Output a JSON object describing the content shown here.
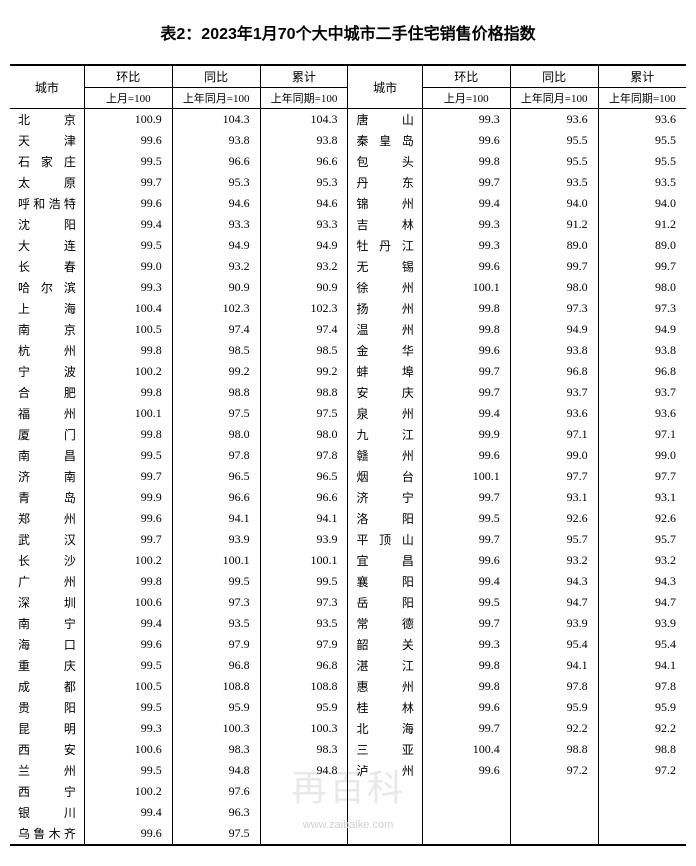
{
  "title": "表2：2023年1月70个大中城市二手住宅销售价格指数",
  "headers": {
    "city": "城市",
    "mom": "环比",
    "yoy": "同比",
    "cum": "累计",
    "mom_sub": "上月=100",
    "yoy_sub": "上年同月=100",
    "cum_sub": "上年同期=100"
  },
  "watermark_text": "再百科",
  "footer_url": "www.zaibaike.com",
  "left_rows": [
    {
      "city": "北　　京",
      "mom": "100.9",
      "yoy": "104.3",
      "cum": "104.3"
    },
    {
      "city": "天　　津",
      "mom": "99.6",
      "yoy": "93.8",
      "cum": "93.8"
    },
    {
      "city": "石 家 庄",
      "mom": "99.5",
      "yoy": "96.6",
      "cum": "96.6"
    },
    {
      "city": "太　　原",
      "mom": "99.7",
      "yoy": "95.3",
      "cum": "95.3"
    },
    {
      "city": "呼和浩特",
      "mom": "99.6",
      "yoy": "94.6",
      "cum": "94.6"
    },
    {
      "city": "沈　　阳",
      "mom": "99.4",
      "yoy": "93.3",
      "cum": "93.3"
    },
    {
      "city": "大　　连",
      "mom": "99.5",
      "yoy": "94.9",
      "cum": "94.9"
    },
    {
      "city": "长　　春",
      "mom": "99.0",
      "yoy": "93.2",
      "cum": "93.2"
    },
    {
      "city": "哈 尔 滨",
      "mom": "99.3",
      "yoy": "90.9",
      "cum": "90.9"
    },
    {
      "city": "上　　海",
      "mom": "100.4",
      "yoy": "102.3",
      "cum": "102.3"
    },
    {
      "city": "南　　京",
      "mom": "100.5",
      "yoy": "97.4",
      "cum": "97.4"
    },
    {
      "city": "杭　　州",
      "mom": "99.8",
      "yoy": "98.5",
      "cum": "98.5"
    },
    {
      "city": "宁　　波",
      "mom": "100.2",
      "yoy": "99.2",
      "cum": "99.2"
    },
    {
      "city": "合　　肥",
      "mom": "99.8",
      "yoy": "98.8",
      "cum": "98.8"
    },
    {
      "city": "福　　州",
      "mom": "100.1",
      "yoy": "97.5",
      "cum": "97.5"
    },
    {
      "city": "厦　　门",
      "mom": "99.8",
      "yoy": "98.0",
      "cum": "98.0"
    },
    {
      "city": "南　　昌",
      "mom": "99.5",
      "yoy": "97.8",
      "cum": "97.8"
    },
    {
      "city": "济　　南",
      "mom": "99.7",
      "yoy": "96.5",
      "cum": "96.5"
    },
    {
      "city": "青　　岛",
      "mom": "99.9",
      "yoy": "96.6",
      "cum": "96.6"
    },
    {
      "city": "郑　　州",
      "mom": "99.6",
      "yoy": "94.1",
      "cum": "94.1"
    },
    {
      "city": "武　　汉",
      "mom": "99.7",
      "yoy": "93.9",
      "cum": "93.9"
    },
    {
      "city": "长　　沙",
      "mom": "100.2",
      "yoy": "100.1",
      "cum": "100.1"
    },
    {
      "city": "广　　州",
      "mom": "99.8",
      "yoy": "99.5",
      "cum": "99.5"
    },
    {
      "city": "深　　圳",
      "mom": "100.6",
      "yoy": "97.3",
      "cum": "97.3"
    },
    {
      "city": "南　　宁",
      "mom": "99.4",
      "yoy": "93.5",
      "cum": "93.5"
    },
    {
      "city": "海　　口",
      "mom": "99.6",
      "yoy": "97.9",
      "cum": "97.9"
    },
    {
      "city": "重　　庆",
      "mom": "99.5",
      "yoy": "96.8",
      "cum": "96.8"
    },
    {
      "city": "成　　都",
      "mom": "100.5",
      "yoy": "108.8",
      "cum": "108.8"
    },
    {
      "city": "贵　　阳",
      "mom": "99.5",
      "yoy": "95.9",
      "cum": "95.9"
    },
    {
      "city": "昆　　明",
      "mom": "99.3",
      "yoy": "100.3",
      "cum": "100.3"
    },
    {
      "city": "西　　安",
      "mom": "100.6",
      "yoy": "98.3",
      "cum": "98.3"
    },
    {
      "city": "兰　　州",
      "mom": "99.5",
      "yoy": "94.8",
      "cum": "94.8"
    },
    {
      "city": "西　　宁",
      "mom": "100.2",
      "yoy": "97.6",
      "cum": ""
    },
    {
      "city": "银　　川",
      "mom": "99.4",
      "yoy": "96.3",
      "cum": ""
    },
    {
      "city": "乌鲁木齐",
      "mom": "99.6",
      "yoy": "97.5",
      "cum": ""
    }
  ],
  "right_rows": [
    {
      "city": "唐　　山",
      "mom": "99.3",
      "yoy": "93.6",
      "cum": "93.6"
    },
    {
      "city": "秦 皇 岛",
      "mom": "99.6",
      "yoy": "95.5",
      "cum": "95.5"
    },
    {
      "city": "包　　头",
      "mom": "99.8",
      "yoy": "95.5",
      "cum": "95.5"
    },
    {
      "city": "丹　　东",
      "mom": "99.7",
      "yoy": "93.5",
      "cum": "93.5"
    },
    {
      "city": "锦　　州",
      "mom": "99.4",
      "yoy": "94.0",
      "cum": "94.0"
    },
    {
      "city": "吉　　林",
      "mom": "99.3",
      "yoy": "91.2",
      "cum": "91.2"
    },
    {
      "city": "牡 丹 江",
      "mom": "99.3",
      "yoy": "89.0",
      "cum": "89.0"
    },
    {
      "city": "无　　锡",
      "mom": "99.6",
      "yoy": "99.7",
      "cum": "99.7"
    },
    {
      "city": "徐　　州",
      "mom": "100.1",
      "yoy": "98.0",
      "cum": "98.0"
    },
    {
      "city": "扬　　州",
      "mom": "99.8",
      "yoy": "97.3",
      "cum": "97.3"
    },
    {
      "city": "温　　州",
      "mom": "99.8",
      "yoy": "94.9",
      "cum": "94.9"
    },
    {
      "city": "金　　华",
      "mom": "99.6",
      "yoy": "93.8",
      "cum": "93.8"
    },
    {
      "city": "蚌　　埠",
      "mom": "99.7",
      "yoy": "96.8",
      "cum": "96.8"
    },
    {
      "city": "安　　庆",
      "mom": "99.7",
      "yoy": "93.7",
      "cum": "93.7"
    },
    {
      "city": "泉　　州",
      "mom": "99.4",
      "yoy": "93.6",
      "cum": "93.6"
    },
    {
      "city": "九　　江",
      "mom": "99.9",
      "yoy": "97.1",
      "cum": "97.1"
    },
    {
      "city": "赣　　州",
      "mom": "99.6",
      "yoy": "99.0",
      "cum": "99.0"
    },
    {
      "city": "烟　　台",
      "mom": "100.1",
      "yoy": "97.7",
      "cum": "97.7"
    },
    {
      "city": "济　　宁",
      "mom": "99.7",
      "yoy": "93.1",
      "cum": "93.1"
    },
    {
      "city": "洛　　阳",
      "mom": "99.5",
      "yoy": "92.6",
      "cum": "92.6"
    },
    {
      "city": "平 顶 山",
      "mom": "99.7",
      "yoy": "95.7",
      "cum": "95.7"
    },
    {
      "city": "宜　　昌",
      "mom": "99.6",
      "yoy": "93.2",
      "cum": "93.2"
    },
    {
      "city": "襄　　阳",
      "mom": "99.4",
      "yoy": "94.3",
      "cum": "94.3"
    },
    {
      "city": "岳　　阳",
      "mom": "99.5",
      "yoy": "94.7",
      "cum": "94.7"
    },
    {
      "city": "常　　德",
      "mom": "99.7",
      "yoy": "93.9",
      "cum": "93.9"
    },
    {
      "city": "韶　　关",
      "mom": "99.3",
      "yoy": "95.4",
      "cum": "95.4"
    },
    {
      "city": "湛　　江",
      "mom": "99.8",
      "yoy": "94.1",
      "cum": "94.1"
    },
    {
      "city": "惠　　州",
      "mom": "99.8",
      "yoy": "97.8",
      "cum": "97.8"
    },
    {
      "city": "桂　　林",
      "mom": "99.6",
      "yoy": "95.9",
      "cum": "95.9"
    },
    {
      "city": "北　　海",
      "mom": "99.7",
      "yoy": "92.2",
      "cum": "92.2"
    },
    {
      "city": "三　　亚",
      "mom": "100.4",
      "yoy": "98.8",
      "cum": "98.8"
    },
    {
      "city": "泸　　州",
      "mom": "99.6",
      "yoy": "97.2",
      "cum": "97.2"
    }
  ],
  "col_widths": {
    "city_pct": "11%",
    "num_pct": "13%"
  }
}
